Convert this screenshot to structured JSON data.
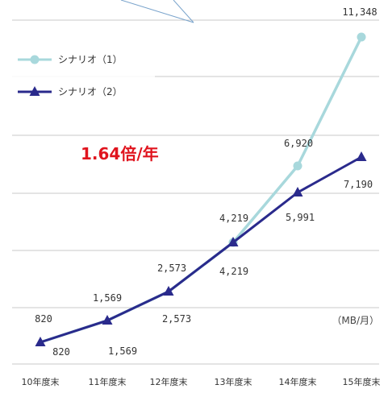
{
  "chart_data": {
    "type": "line",
    "categories": [
      "10年度末",
      "11年度末",
      "12年度末",
      "13年度末",
      "14年度末",
      "15年度末"
    ],
    "series": [
      {
        "name": "シナリオ（1）",
        "color": "#a8d8dc",
        "marker": "circle",
        "values": [
          820,
          1569,
          2573,
          4219,
          6920,
          11348
        ],
        "labels": [
          "",
          "",
          "",
          "4,219",
          "6,920",
          "11,348"
        ]
      },
      {
        "name": "シナリオ（2）",
        "color": "#2a2a8c",
        "marker": "triangle",
        "values": [
          820,
          1569,
          2573,
          4219,
          5991,
          7190
        ],
        "labels": [
          "820",
          "1,569",
          "2,573",
          "4,219",
          "5,991",
          "7,190"
        ]
      }
    ],
    "top_labels": [
      "820",
      "1,569",
      "2,573"
    ],
    "annotation": "1.64倍/年",
    "unit": "（MB/月）",
    "ylim": [
      0,
      12000
    ],
    "grid": true,
    "legend": "top-left"
  }
}
